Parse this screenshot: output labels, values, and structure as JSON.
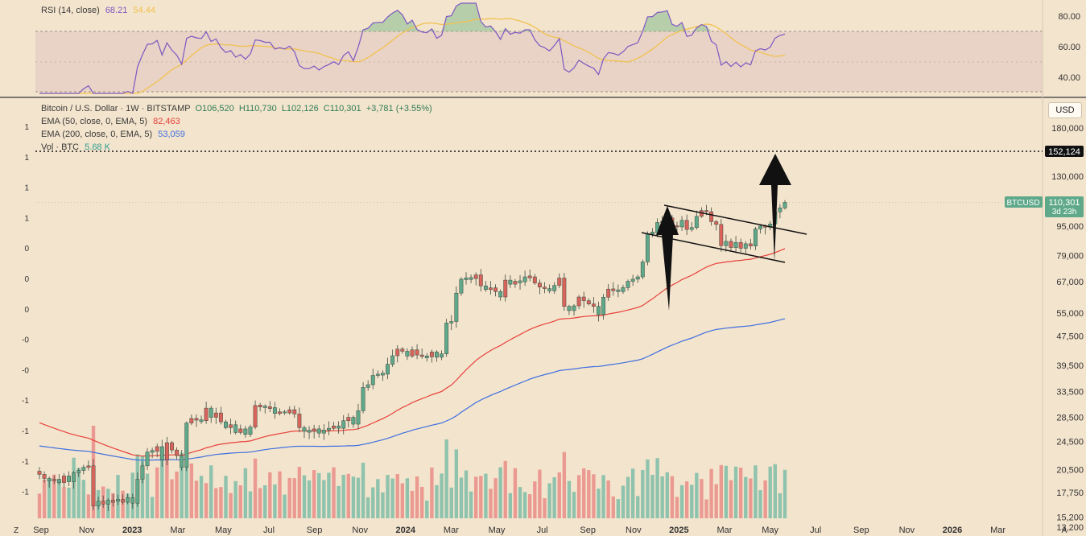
{
  "rsi_panel": {
    "label": "RSI (14, close)",
    "rsi_value": "68.21",
    "ma_value": "54.44",
    "rsi_color": "#7e57c2",
    "ma_color": "#f2c14e",
    "upper_band": 70,
    "lower_band": 30,
    "mid_line": 50,
    "ticks": [
      "80.00",
      "60.00",
      "40.00"
    ]
  },
  "price_panel": {
    "title": "Bitcoin / U.S. Dollar · 1W · BITSTAMP",
    "open": "O106,520",
    "high": "H110,730",
    "low": "L102,126",
    "close": "C110,301",
    "change": "+3,781 (+3.55%)",
    "ema50_label": "EMA (50, close, 0, EMA, 5)",
    "ema50_value": "82,463",
    "ema200_label": "EMA (200, close, 0, EMA, 5)",
    "ema200_value": "53,059",
    "vol_label": "Vol · BTC",
    "vol_value": "5.68 K",
    "currency": "USD",
    "ticker_label": "BTCUSD",
    "ticker_price": "110,301",
    "countdown": "3d 23h",
    "target_label": "152,124",
    "up_color": "#5fa98a",
    "down_color": "#d9635b",
    "ema50_color": "#e8403a",
    "ema200_color": "#3e6fe0"
  },
  "left_axis_labels": [
    "1",
    "1",
    "1",
    "1",
    "0",
    "0",
    "0",
    "-0",
    "-0",
    "-1",
    "-1",
    "-1",
    "-1"
  ],
  "chart_data": {
    "type": "candlestick",
    "y_scale": "log",
    "y_ticks": [
      180000,
      152124,
      130000,
      110301,
      95000,
      79000,
      67000,
      55000,
      47500,
      39500,
      33500,
      28500,
      24500,
      20500,
      17750,
      15200,
      13200
    ],
    "y_tick_labels": [
      "180,000",
      "152,124",
      "130,000",
      "110,301",
      "95,000",
      "79,000",
      "67,000",
      "55,000",
      "47,500",
      "39,500",
      "33,500",
      "28,500",
      "24,500",
      "20,500",
      "17,750",
      "15,200",
      "13,200"
    ],
    "x_tick_labels": [
      "Sep",
      "Nov",
      "2023",
      "Mar",
      "May",
      "Jul",
      "Sep",
      "Nov",
      "2024",
      "Mar",
      "May",
      "Jul",
      "Sep",
      "Nov",
      "2025",
      "Mar",
      "May",
      "Jul",
      "Sep",
      "Nov",
      "2026",
      "Mar"
    ],
    "x_label_bold": [
      "2023",
      "2024",
      "2025",
      "2026"
    ],
    "target_level": 152124,
    "weekly_close": [
      19900,
      19400,
      19100,
      19300,
      18900,
      19700,
      19000,
      20100,
      20400,
      20800,
      21000,
      16300,
      16800,
      16500,
      16900,
      16800,
      17000,
      16700,
      17200,
      16600,
      19300,
      21000,
      22900,
      23000,
      23700,
      21800,
      24300,
      23200,
      22400,
      20800,
      27500,
      28300,
      28000,
      27900,
      30200,
      28500,
      29300,
      27700,
      26700,
      27200,
      25900,
      26500,
      25600,
      26800,
      30700,
      30600,
      30300,
      30300,
      29200,
      29500,
      29300,
      29900,
      29100,
      26700,
      26100,
      26100,
      26500,
      25800,
      26300,
      26600,
      27000,
      26600,
      27900,
      28500,
      27300,
      29700,
      34400,
      35000,
      37100,
      37400,
      37400,
      39800,
      42000,
      43800,
      43200,
      41900,
      43600,
      42200,
      41800,
      41700,
      43000,
      41600,
      42500,
      51600,
      52100,
      62300,
      68000,
      68200,
      68300,
      69900,
      65200,
      63700,
      64400,
      62900,
      60800,
      67600,
      65900,
      67100,
      66900,
      69000,
      69000,
      66400,
      64700,
      64100,
      63200,
      65400,
      68500,
      57300,
      55800,
      57500,
      60800,
      59400,
      58200,
      57300,
      54400,
      60700,
      63900,
      63600,
      62900,
      64500,
      67100,
      68000,
      69000,
      75800,
      90600,
      91000,
      97200,
      98000,
      100000,
      95200,
      94500,
      98500,
      93000,
      94100,
      101000,
      104800,
      104000,
      97700,
      96000,
      84000,
      86300,
      83000,
      85700,
      82600,
      85000,
      83800,
      93300,
      95000,
      94300,
      96300,
      103900,
      106500,
      110301
    ],
    "weekly_color": [
      "d",
      "d",
      "u",
      "d",
      "u",
      "d",
      "u",
      "u",
      "u",
      "u",
      "d",
      "d",
      "u",
      "d",
      "u",
      "d",
      "u",
      "d",
      "u",
      "u",
      "u",
      "u",
      "u",
      "u",
      "d",
      "u",
      "d",
      "d",
      "d",
      "u",
      "u",
      "d",
      "d",
      "u",
      "d",
      "u",
      "d",
      "d",
      "u",
      "d",
      "u",
      "d",
      "u",
      "u",
      "d",
      "d",
      "u",
      "d",
      "u",
      "d",
      "u",
      "d",
      "d",
      "d",
      "u",
      "u",
      "d",
      "u",
      "u",
      "u",
      "d",
      "u",
      "u",
      "d",
      "u",
      "u",
      "u",
      "u",
      "u",
      "u",
      "u",
      "u",
      "u",
      "d",
      "d",
      "u",
      "d",
      "d",
      "d",
      "u",
      "d",
      "u",
      "u",
      "u",
      "u",
      "u",
      "u",
      "u",
      "u",
      "d",
      "d",
      "u",
      "d",
      "d",
      "u",
      "d",
      "u",
      "d",
      "u",
      "u",
      "d",
      "d",
      "d",
      "d",
      "u",
      "u",
      "d",
      "d",
      "u",
      "u",
      "d",
      "d",
      "d",
      "d",
      "u",
      "u",
      "d",
      "d",
      "u",
      "u",
      "u",
      "u",
      "u",
      "u",
      "u",
      "u",
      "u",
      "u",
      "u",
      "d",
      "d",
      "u",
      "d",
      "u",
      "u",
      "d",
      "d",
      "d",
      "d",
      "d",
      "u",
      "d",
      "u",
      "d",
      "u",
      "d",
      "u",
      "u",
      "d",
      "u",
      "u",
      "u",
      "u"
    ],
    "ema50_end": 82463,
    "ema200_end": 53059,
    "rsi_end": 68.21,
    "rsi_ma_end": 54.44,
    "annotations": [
      {
        "type": "falling-channel",
        "from": "Dec 2024",
        "to": "May 2025"
      },
      {
        "type": "flagpole-arrow",
        "from": 55000,
        "to": 108000
      },
      {
        "type": "target-arrow",
        "from": 76000,
        "to": 152124
      }
    ]
  }
}
